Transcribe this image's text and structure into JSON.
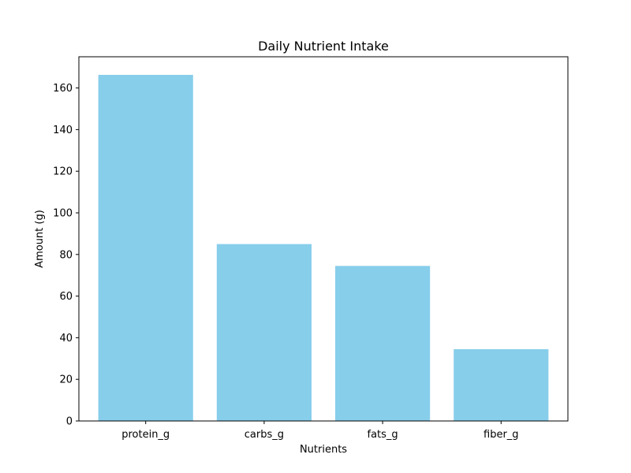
{
  "chart_data": {
    "type": "bar",
    "title": "Daily Nutrient Intake",
    "xlabel": "Nutrients",
    "ylabel": "Amount (g)",
    "categories": [
      "protein_g",
      "carbs_g",
      "fats_g",
      "fiber_g"
    ],
    "values": [
      166.3,
      85.0,
      74.5,
      34.5
    ],
    "ylim": [
      0,
      175
    ],
    "yticks": [
      0,
      20,
      40,
      60,
      80,
      100,
      120,
      140,
      160
    ],
    "bar_color": "#87CEEB",
    "grid": false,
    "legend": "none"
  }
}
